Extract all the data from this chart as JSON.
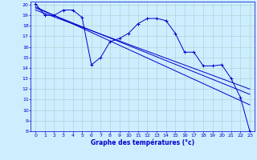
{
  "xlabel": "Graphe des températures (°c)",
  "bg_color": "#cceeff",
  "grid_color": "#aacccc",
  "line_color": "#0000cc",
  "xlim": [
    -0.5,
    23.5
  ],
  "ylim": [
    8,
    20.3
  ],
  "yticks": [
    8,
    9,
    10,
    11,
    12,
    13,
    14,
    15,
    16,
    17,
    18,
    19,
    20
  ],
  "xticks": [
    0,
    1,
    2,
    3,
    4,
    5,
    6,
    7,
    8,
    9,
    10,
    11,
    12,
    13,
    14,
    15,
    16,
    17,
    18,
    19,
    20,
    21,
    22,
    23
  ],
  "series": [
    {
      "x": [
        0,
        1,
        2,
        3,
        4,
        5,
        6,
        7,
        8,
        9,
        10,
        11,
        12,
        13,
        14,
        15,
        16,
        17,
        18,
        19,
        20,
        21,
        22,
        23
      ],
      "y": [
        20.1,
        19.0,
        19.0,
        19.5,
        19.5,
        18.8,
        14.3,
        15.0,
        16.5,
        16.8,
        17.3,
        18.2,
        18.7,
        18.7,
        18.5,
        17.3,
        15.5,
        15.5,
        14.2,
        14.2,
        14.3,
        13.0,
        11.2,
        8.0
      ],
      "marker": true
    },
    {
      "x": [
        0,
        23
      ],
      "y": [
        19.8,
        10.5
      ],
      "marker": false
    },
    {
      "x": [
        0,
        23
      ],
      "y": [
        19.7,
        11.5
      ],
      "marker": false
    },
    {
      "x": [
        0,
        23
      ],
      "y": [
        19.5,
        12.0
      ],
      "marker": false
    }
  ]
}
